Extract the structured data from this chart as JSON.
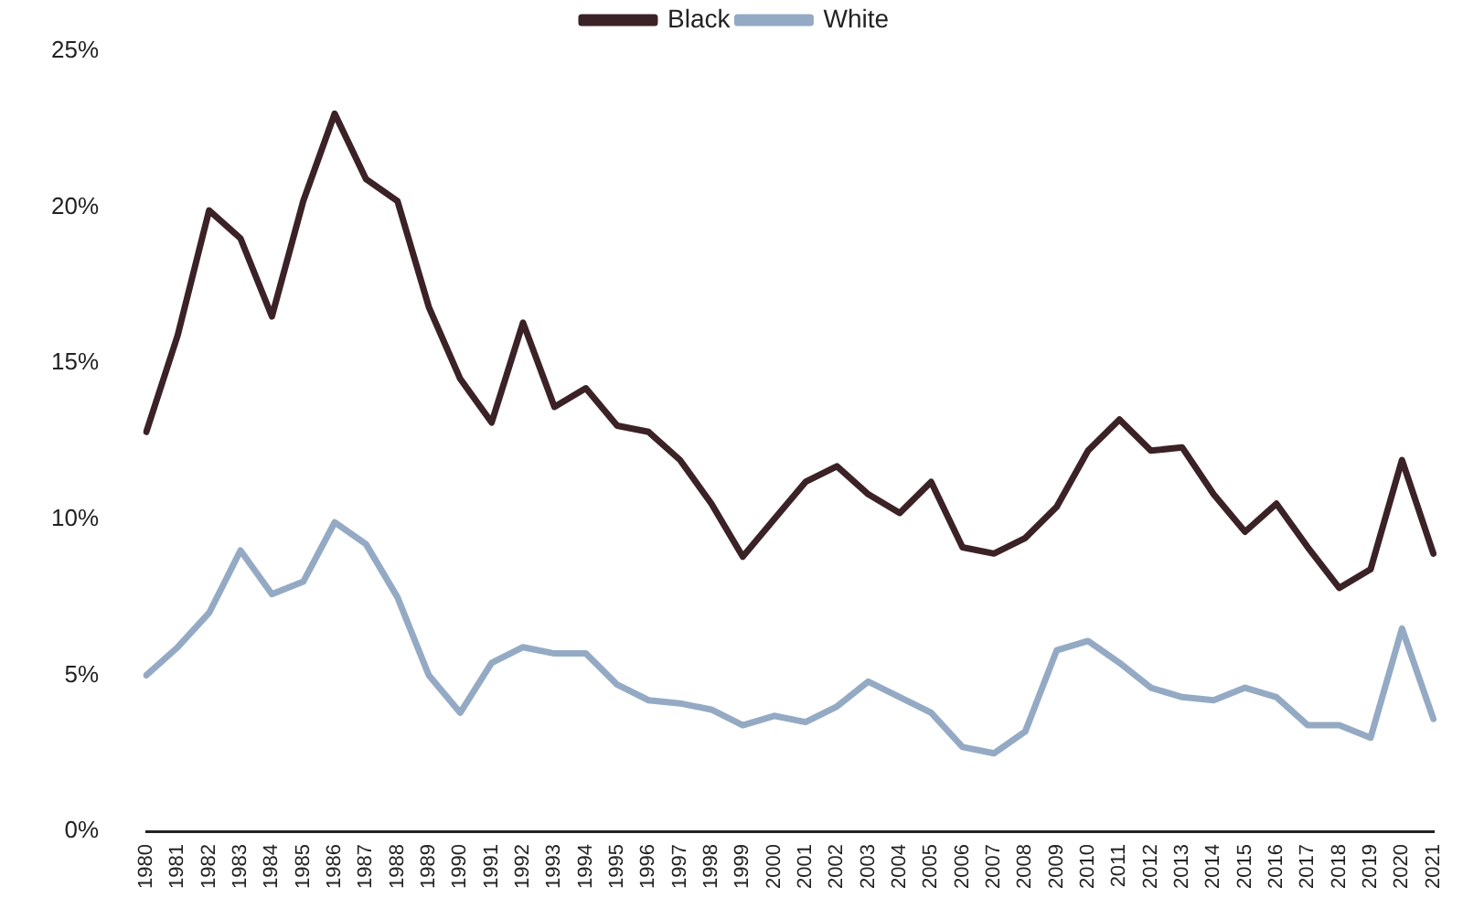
{
  "chart_data": {
    "type": "line",
    "categories": [
      "1980",
      "1981",
      "1982",
      "1983",
      "1984",
      "1985",
      "1986",
      "1987",
      "1988",
      "1989",
      "1990",
      "1991",
      "1992",
      "1993",
      "1994",
      "1995",
      "1996",
      "1997",
      "1998",
      "1999",
      "2000",
      "2001",
      "2002",
      "2003",
      "2004",
      "2005",
      "2006",
      "2007",
      "2008",
      "2009",
      "2010",
      "2011",
      "2012",
      "2013",
      "2014",
      "2015",
      "2016",
      "2017",
      "2018",
      "2019",
      "2020",
      "2021"
    ],
    "series": [
      {
        "name": "Black",
        "color": "#3b2226",
        "values": [
          12.8,
          15.9,
          19.9,
          19.0,
          16.5,
          20.2,
          23.0,
          20.9,
          20.2,
          16.8,
          14.5,
          13.1,
          16.3,
          13.6,
          14.2,
          13.0,
          12.8,
          11.9,
          10.5,
          8.8,
          10.0,
          11.2,
          11.7,
          10.8,
          10.2,
          11.2,
          9.1,
          8.9,
          9.4,
          10.4,
          12.2,
          13.2,
          12.2,
          12.3,
          10.8,
          9.6,
          10.5,
          9.1,
          7.8,
          8.4,
          11.9,
          8.9
        ]
      },
      {
        "name": "White",
        "color": "#94aac4",
        "values": [
          5.0,
          5.9,
          7.0,
          9.0,
          7.6,
          8.0,
          9.9,
          9.2,
          7.5,
          5.0,
          3.8,
          5.4,
          5.9,
          5.7,
          5.7,
          4.7,
          4.2,
          4.1,
          3.9,
          3.4,
          3.7,
          3.5,
          4.0,
          4.8,
          4.3,
          3.8,
          2.7,
          2.5,
          3.2,
          5.8,
          6.1,
          5.4,
          4.6,
          4.3,
          4.2,
          4.6,
          4.3,
          3.4,
          3.4,
          3.0,
          6.5,
          3.6
        ]
      }
    ],
    "ylim": [
      0,
      25
    ],
    "yticks": [
      {
        "value": 0,
        "label": "0%"
      },
      {
        "value": 5,
        "label": "5%"
      },
      {
        "value": 10,
        "label": "10%"
      },
      {
        "value": 15,
        "label": "15%"
      },
      {
        "value": 20,
        "label": "20%"
      },
      {
        "value": 25,
        "label": "25%"
      }
    ],
    "grid": false,
    "legend": "top",
    "marker": "none",
    "line_style": "solid"
  }
}
